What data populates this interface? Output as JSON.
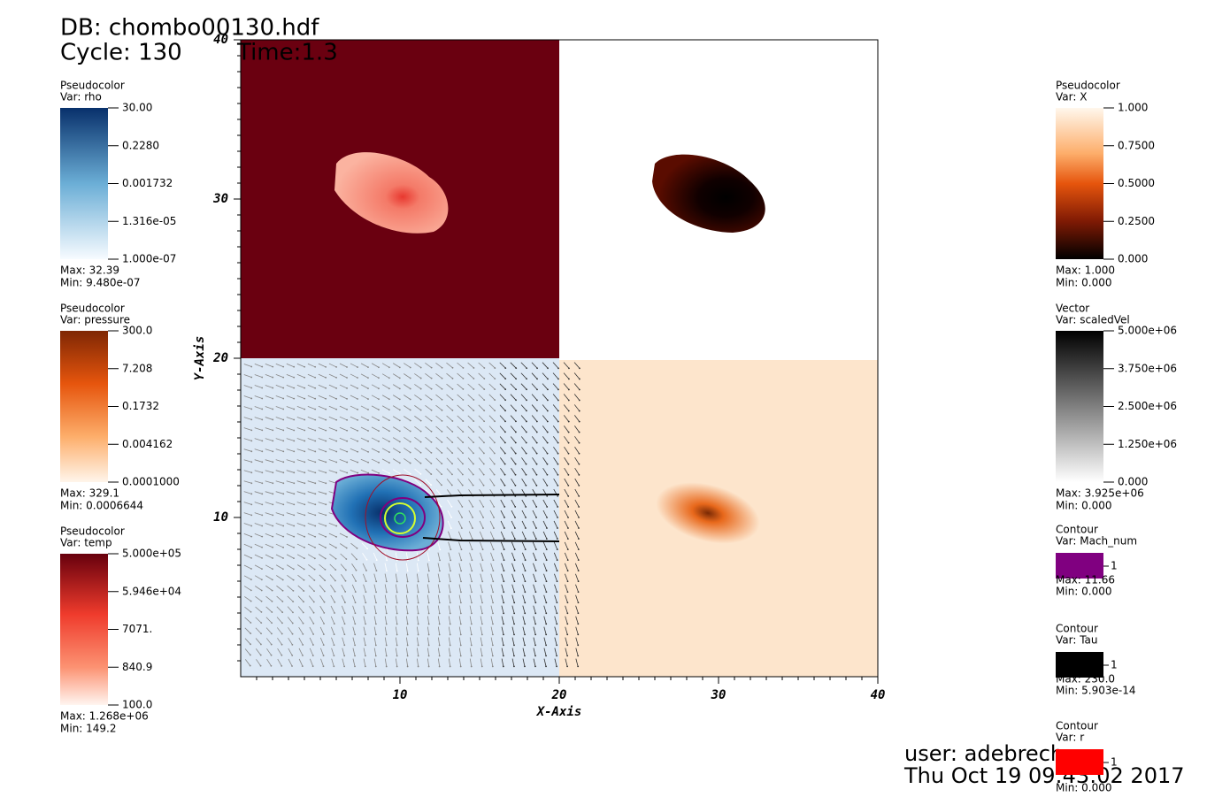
{
  "header": {
    "db": "DB: chombo00130.hdf",
    "cycle": "Cycle: 130",
    "time": "Time:1.3"
  },
  "axes": {
    "x_title": "X-Axis",
    "y_title": "Y-Axis",
    "xticks": [
      "10",
      "20",
      "30",
      "40"
    ],
    "yticks": [
      "10",
      "20",
      "30",
      "40"
    ]
  },
  "legends_left": [
    {
      "kind": "Pseudocolor",
      "var": "Var: rho",
      "labels": [
        "30.00",
        "0.2280",
        "0.001732",
        "1.316e-05",
        "1.000e-07"
      ],
      "max": "Max:  32.39",
      "min": "Min:  9.480e-07"
    },
    {
      "kind": "Pseudocolor",
      "var": "Var: pressure",
      "labels": [
        "300.0",
        "7.208",
        "0.1732",
        "0.004162",
        "0.0001000"
      ],
      "max": "Max:  329.1",
      "min": "Min:  0.0006644"
    },
    {
      "kind": "Pseudocolor",
      "var": "Var: temp",
      "labels": [
        "5.000e+05",
        "5.946e+04",
        "7071.",
        "840.9",
        "100.0"
      ],
      "max": "Max:  1.268e+06",
      "min": "Min:  149.2"
    }
  ],
  "legends_right": [
    {
      "kind": "Pseudocolor",
      "var": "Var: X",
      "labels": [
        "1.000",
        "0.7500",
        "0.5000",
        "0.2500",
        "0.000"
      ],
      "max": "Max:  1.000",
      "min": "Min:  0.000"
    },
    {
      "kind": "Vector",
      "var": "Var: scaledVel",
      "labels": [
        "5.000e+06",
        "3.750e+06",
        "2.500e+06",
        "1.250e+06",
        "0.000"
      ],
      "max": "Max:  3.925e+06",
      "min": "Min:  0.000"
    },
    {
      "kind": "Contour",
      "var": "Var: Mach_num",
      "labels": [
        "1"
      ],
      "max": "Max:  11.66",
      "min": "Min:  0.000"
    },
    {
      "kind": "Contour",
      "var": "Var: Tau",
      "labels": [
        "1"
      ],
      "max": "Max:  230.0",
      "min": "Min:  5.903e-14"
    },
    {
      "kind": "Contour",
      "var": "Var: r",
      "labels": [
        "1"
      ],
      "min": "Min:  0.000"
    }
  ],
  "footer": {
    "user": "user: adebrech",
    "date": "Thu Oct 19 09:43:02 2017"
  }
}
